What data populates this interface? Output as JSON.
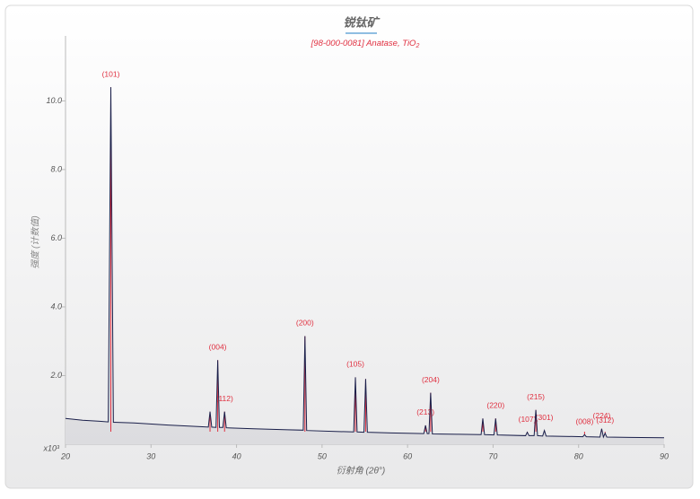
{
  "chart_data": {
    "type": "line",
    "title": "锐钛矿",
    "subtitle": {
      "main": "[98-000-0081] Anatase, TiO",
      "sub": "2"
    },
    "xlabel": "衍射角 (2θ°)",
    "ylabel": "强度 (计数值)",
    "y_unit": "x10³",
    "color": "#1a1f4a",
    "xlim": [
      20,
      90
    ],
    "xticks": [
      20,
      30,
      40,
      50,
      60,
      70,
      80,
      90
    ],
    "ylim": [
      0,
      11.5
    ],
    "yticks": [
      {
        "value": 2,
        "label": "2.0"
      },
      {
        "value": 4,
        "label": "4.0"
      },
      {
        "value": 6,
        "label": "6.0"
      },
      {
        "value": 8,
        "label": "8.0"
      },
      {
        "value": 10,
        "label": "10.0"
      }
    ],
    "grid": false,
    "x": [
      20,
      22,
      24,
      25.0,
      25.3,
      25.6,
      28,
      32,
      36,
      36.7,
      36.9,
      37.1,
      37.6,
      37.8,
      38.0,
      38.4,
      38.6,
      38.8,
      42,
      46,
      47.8,
      48.0,
      48.2,
      52,
      53.7,
      53.9,
      54.1,
      54.9,
      55.1,
      55.3,
      58,
      61.9,
      62.1,
      62.3,
      62.5,
      62.7,
      62.9,
      66,
      68.6,
      68.8,
      69.0,
      70.1,
      70.3,
      70.5,
      73.8,
      74.0,
      74.2,
      74.8,
      75.0,
      75.2,
      75.8,
      76.0,
      76.2,
      80.5,
      80.7,
      80.9,
      82.5,
      82.7,
      82.9,
      83.1,
      83.3,
      86,
      90
    ],
    "values": [
      0.75,
      0.7,
      0.67,
      0.65,
      10.4,
      0.64,
      0.62,
      0.56,
      0.51,
      0.5,
      0.95,
      0.5,
      0.49,
      2.45,
      0.49,
      0.49,
      0.95,
      0.48,
      0.45,
      0.42,
      0.41,
      3.15,
      0.4,
      0.37,
      0.36,
      1.95,
      0.36,
      0.35,
      1.9,
      0.35,
      0.33,
      0.31,
      0.55,
      0.31,
      0.31,
      1.5,
      0.3,
      0.29,
      0.28,
      0.75,
      0.28,
      0.27,
      0.75,
      0.27,
      0.25,
      0.35,
      0.25,
      0.25,
      1.0,
      0.25,
      0.24,
      0.4,
      0.24,
      0.22,
      0.28,
      0.22,
      0.21,
      0.45,
      0.21,
      0.32,
      0.21,
      0.2,
      0.19
    ],
    "reference": {
      "color": "#e03040",
      "x": [
        25.3,
        36.9,
        37.8,
        38.6,
        48.0,
        53.9,
        55.1,
        62.1,
        62.7,
        68.8,
        70.3,
        74.0,
        75.0,
        76.0,
        80.7,
        82.7,
        83.1
      ],
      "values": [
        10.4,
        0.95,
        2.45,
        0.95,
        3.15,
        1.95,
        1.9,
        0.55,
        1.5,
        0.75,
        0.75,
        0.35,
        1.0,
        0.4,
        0.28,
        0.45,
        0.32
      ],
      "labels": [
        "(101)",
        null,
        "(004)",
        "(112)",
        "(200)",
        "(105)",
        null,
        "(213)",
        "(204)",
        null,
        "(220)",
        "(107)",
        "(215)",
        "(301)",
        "(008)",
        "(224)",
        "(312)"
      ]
    }
  }
}
